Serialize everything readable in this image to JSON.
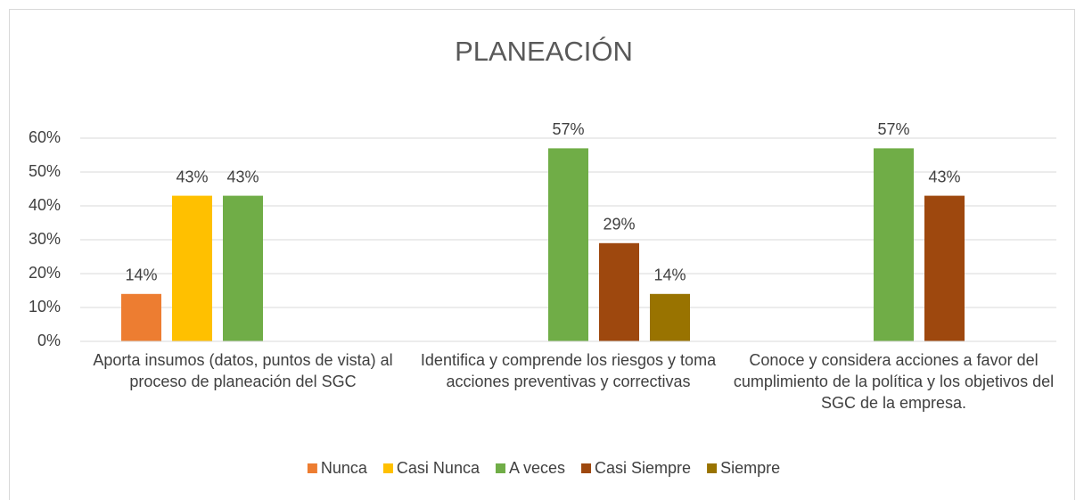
{
  "chart_data": {
    "type": "bar",
    "title": "PLANEACIÓN",
    "categories": [
      "Aporta insumos (datos, puntos de vista) al proceso de planeación del SGC",
      "Identifica y comprende los riesgos y toma acciones preventivas y correctivas",
      "Conoce y considera acciones a favor del cumplimiento de la política y los objetivos del SGC de la empresa."
    ],
    "series": [
      {
        "name": "Nunca",
        "color": "#ed7d31",
        "values": [
          14,
          null,
          null
        ],
        "value_labels": [
          "14%",
          null,
          null
        ]
      },
      {
        "name": "Casi Nunca",
        "color": "#ffc000",
        "values": [
          43,
          null,
          null
        ],
        "value_labels": [
          "43%",
          null,
          null
        ]
      },
      {
        "name": "A veces",
        "color": "#70ad47",
        "values": [
          43,
          57,
          57
        ],
        "value_labels": [
          "43%",
          "57%",
          "57%"
        ]
      },
      {
        "name": "Casi Siempre",
        "color": "#9e480e",
        "values": [
          null,
          29,
          43
        ],
        "value_labels": [
          null,
          "29%",
          "43%"
        ]
      },
      {
        "name": "Siempre",
        "color": "#997300",
        "values": [
          null,
          14,
          null
        ],
        "value_labels": [
          null,
          "14%",
          null
        ]
      }
    ],
    "ylim": [
      0,
      60
    ],
    "yticks": [
      {
        "value": 0,
        "label": "0%"
      },
      {
        "value": 10,
        "label": "10%"
      },
      {
        "value": 20,
        "label": "20%"
      },
      {
        "value": 30,
        "label": "30%"
      },
      {
        "value": 40,
        "label": "40%"
      },
      {
        "value": 50,
        "label": "50%"
      },
      {
        "value": 60,
        "label": "60%"
      }
    ],
    "grid": true,
    "legend": "bottom"
  }
}
